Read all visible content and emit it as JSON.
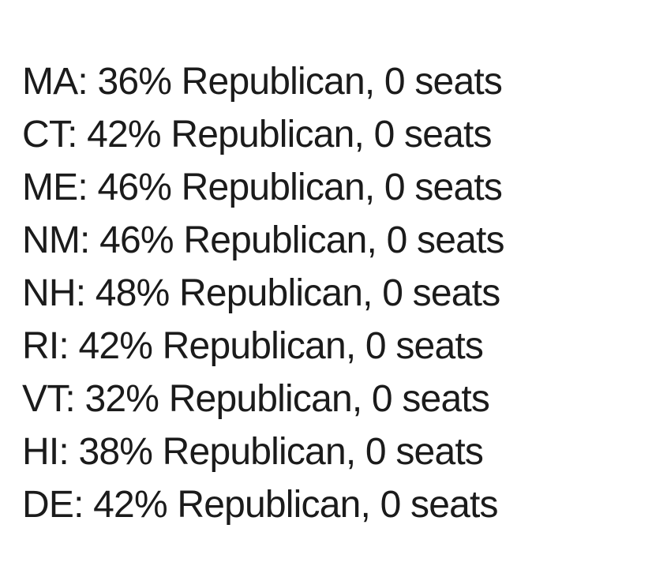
{
  "page": {
    "background_color": "#ffffff",
    "text_color": "#1b1b1b"
  },
  "records": [
    {
      "state": "MA",
      "republican_percent": 36,
      "seats": 0,
      "text": "MA: 36% Republican, 0 seats"
    },
    {
      "state": "CT",
      "republican_percent": 42,
      "seats": 0,
      "text": "CT: 42% Republican, 0 seats"
    },
    {
      "state": "ME",
      "republican_percent": 46,
      "seats": 0,
      "text": "ME: 46% Republican, 0 seats"
    },
    {
      "state": "NM",
      "republican_percent": 46,
      "seats": 0,
      "text": "NM: 46% Republican, 0 seats"
    },
    {
      "state": "NH",
      "republican_percent": 48,
      "seats": 0,
      "text": "NH: 48% Republican, 0 seats"
    },
    {
      "state": "RI",
      "republican_percent": 42,
      "seats": 0,
      "text": "RI: 42% Republican, 0 seats"
    },
    {
      "state": "VT",
      "republican_percent": 32,
      "seats": 0,
      "text": "VT: 32% Republican, 0 seats"
    },
    {
      "state": "HI",
      "republican_percent": 38,
      "seats": 0,
      "text": "HI: 38% Republican, 0 seats"
    },
    {
      "state": "DE",
      "republican_percent": 42,
      "seats": 0,
      "text": "DE: 42% Republican, 0 seats"
    }
  ]
}
